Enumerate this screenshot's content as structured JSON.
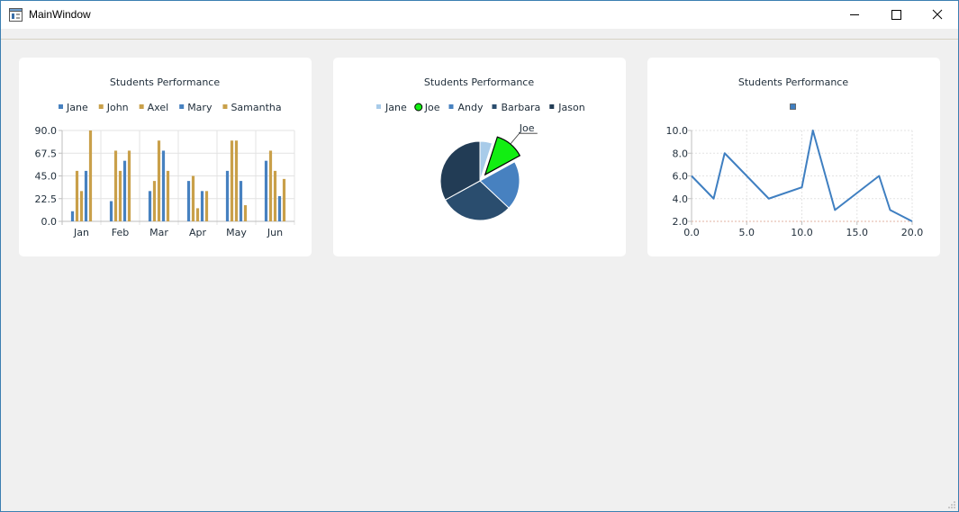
{
  "window": {
    "title": "MainWindow"
  },
  "icons": {
    "app": "app-window-icon",
    "minimize": "minimize-icon",
    "maximize": "maximize-icon",
    "close": "close-icon",
    "grip": "resize-grip-icon"
  },
  "chart_data": [
    {
      "type": "bar",
      "title": "Students Performance",
      "categories": [
        "Jan",
        "Feb",
        "Mar",
        "Apr",
        "May",
        "Jun"
      ],
      "series": [
        {
          "name": "Jane",
          "color": "#4781c0",
          "values": [
            10,
            20,
            30,
            40,
            50,
            60
          ]
        },
        {
          "name": "John",
          "color": "#c9a04a",
          "values": [
            50,
            70,
            40,
            45,
            80,
            70
          ]
        },
        {
          "name": "Axel",
          "color": "#c9a04a",
          "values": [
            30,
            50,
            80,
            13,
            80,
            50
          ]
        },
        {
          "name": "Mary",
          "color": "#4781c0",
          "values": [
            50,
            60,
            70,
            30,
            40,
            25
          ]
        },
        {
          "name": "Samantha",
          "color": "#c9a04a",
          "values": [
            90,
            70,
            50,
            30,
            16,
            42
          ]
        }
      ],
      "ylim": [
        0,
        90
      ],
      "yticks": [
        "0.0",
        "22.5",
        "45.0",
        "67.5",
        "90.0"
      ],
      "legend": "top",
      "grid": true
    },
    {
      "type": "pie",
      "title": "Students Performance",
      "slices": [
        {
          "name": "Jane",
          "value": 5,
          "color": "#a8cbe9",
          "exploded": false
        },
        {
          "name": "Joe",
          "value": 12,
          "color": "#12ee12",
          "exploded": true,
          "label": "Joe"
        },
        {
          "name": "Andy",
          "value": 20,
          "color": "#4781c0",
          "exploded": false
        },
        {
          "name": "Barbara",
          "value": 30,
          "color": "#2a4d6e",
          "exploded": false
        },
        {
          "name": "Jason",
          "value": 33,
          "color": "#223c55",
          "exploded": false
        }
      ],
      "legend": "top"
    },
    {
      "type": "line",
      "title": "Students Performance",
      "series": [
        {
          "name": "",
          "color": "#3f7fc1",
          "x": [
            0,
            2,
            3,
            7,
            10,
            11,
            13,
            17,
            18,
            20
          ],
          "y": [
            6,
            4,
            8,
            4,
            5,
            10,
            3,
            6,
            3,
            2
          ]
        }
      ],
      "xlim": [
        0,
        20
      ],
      "ylim": [
        2,
        10
      ],
      "xticks": [
        "0.0",
        "5.0",
        "10.0",
        "15.0",
        "20.0"
      ],
      "yticks": [
        "2.0",
        "4.0",
        "6.0",
        "8.0",
        "10.0"
      ],
      "legend": "top",
      "grid": true
    }
  ]
}
